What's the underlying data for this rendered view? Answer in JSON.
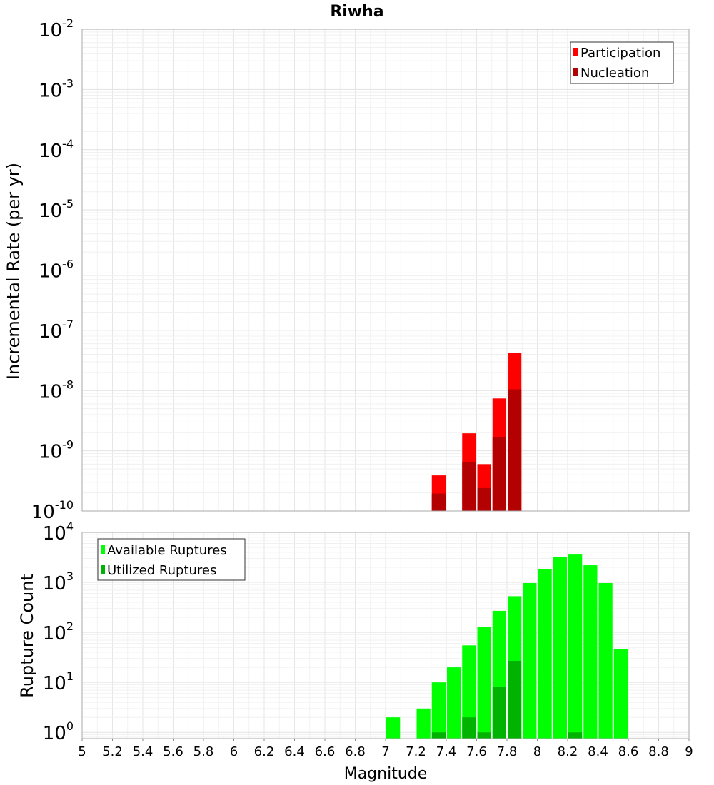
{
  "chart_data": [
    {
      "type": "bar",
      "title": "Riwha",
      "xlabel": "",
      "ylabel": "Incremental Rate (per yr)",
      "y_scale": "log",
      "ylim": [
        1e-10,
        0.01
      ],
      "y_ticks": [
        {
          "base": "10",
          "exp": "-10"
        },
        {
          "base": "10",
          "exp": "-9"
        },
        {
          "base": "10",
          "exp": "-8"
        },
        {
          "base": "10",
          "exp": "-7"
        },
        {
          "base": "10",
          "exp": "-6"
        },
        {
          "base": "10",
          "exp": "-5"
        },
        {
          "base": "10",
          "exp": "-4"
        },
        {
          "base": "10",
          "exp": "-3"
        },
        {
          "base": "10",
          "exp": "-2"
        }
      ],
      "xlim": [
        5,
        9
      ],
      "bar_width": 0.1,
      "legend": "top-right",
      "grid": true,
      "series": [
        {
          "name": "Participation",
          "color": "#ff0000",
          "x": [
            7.35,
            7.55,
            7.65,
            7.75,
            7.85
          ],
          "values": [
            3.9e-10,
            1.95e-09,
            6e-10,
            7.4e-09,
            4.2e-08
          ]
        },
        {
          "name": "Nucleation",
          "color": "#b30000",
          "x": [
            7.35,
            7.55,
            7.65,
            7.75,
            7.85
          ],
          "values": [
            1.95e-10,
            6.5e-10,
            2.4e-10,
            1.7e-09,
            1.05e-08
          ]
        }
      ]
    },
    {
      "type": "bar",
      "xlabel": "Magnitude",
      "ylabel": "Rupture Count",
      "y_scale": "log",
      "ylim": [
        0.75,
        10000
      ],
      "y_ticks": [
        {
          "base": "10",
          "exp": "0"
        },
        {
          "base": "10",
          "exp": "1"
        },
        {
          "base": "10",
          "exp": "2"
        },
        {
          "base": "10",
          "exp": "3"
        },
        {
          "base": "10",
          "exp": "4"
        }
      ],
      "xlim": [
        5,
        9
      ],
      "x_ticks": [
        "5",
        "5.2",
        "5.4",
        "5.6",
        "5.8",
        "6",
        "6.2",
        "6.4",
        "6.6",
        "6.8",
        "7",
        "7.2",
        "7.4",
        "7.6",
        "7.8",
        "8",
        "8.2",
        "8.4",
        "8.6",
        "8.8",
        "9"
      ],
      "bar_width": 0.1,
      "legend": "top-left",
      "grid": true,
      "series": [
        {
          "name": "Available Ruptures",
          "color": "#00ff00",
          "x": [
            7.05,
            7.25,
            7.35,
            7.45,
            7.55,
            7.65,
            7.75,
            7.85,
            7.95,
            8.05,
            8.15,
            8.25,
            8.35,
            8.45,
            8.55
          ],
          "values": [
            2,
            3,
            10,
            20,
            55,
            130,
            270,
            530,
            970,
            1850,
            3200,
            3600,
            2200,
            970,
            47
          ]
        },
        {
          "name": "Utilized Ruptures",
          "color": "#00b300",
          "x": [
            7.35,
            7.55,
            7.65,
            7.75,
            7.85,
            8.25
          ],
          "values": [
            1,
            2,
            1,
            8,
            27,
            1
          ]
        }
      ]
    }
  ]
}
